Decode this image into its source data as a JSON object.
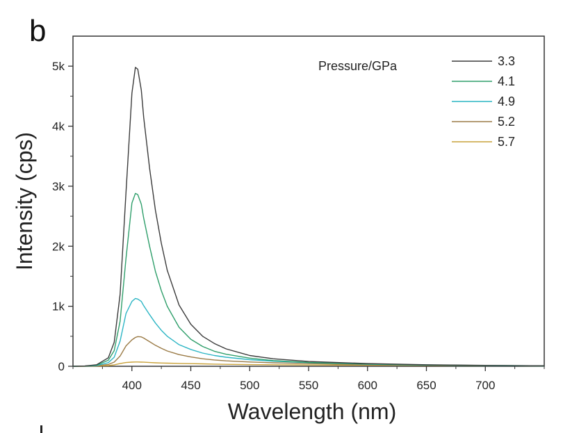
{
  "panel_label": "b",
  "chart_data": {
    "type": "line",
    "title": "",
    "xlabel": "Wavelength (nm)",
    "ylabel": "Intensity (cps)",
    "xlim": [
      350,
      750
    ],
    "ylim": [
      0,
      5500
    ],
    "xticks": [
      400,
      450,
      500,
      550,
      600,
      650,
      700
    ],
    "yticks": [
      0,
      1000,
      2000,
      3000,
      4000,
      5000
    ],
    "ytick_labels": [
      "0",
      "1k",
      "2k",
      "3k",
      "4k",
      "5k"
    ],
    "legend_title": "Pressure/GPa",
    "legend_position": "top-right",
    "grid": false,
    "x": [
      350,
      360,
      370,
      380,
      385,
      390,
      395,
      400,
      403,
      405,
      408,
      410,
      415,
      420,
      425,
      430,
      440,
      450,
      460,
      470,
      480,
      500,
      520,
      550,
      600,
      650,
      700,
      750
    ],
    "series": [
      {
        "name": "3.3",
        "color": "#3a3a3a",
        "values": [
          0,
          5,
          25,
          140,
          400,
          1200,
          2900,
          4550,
          4980,
          4950,
          4600,
          4150,
          3300,
          2600,
          2050,
          1600,
          1020,
          700,
          500,
          380,
          290,
          180,
          125,
          80,
          45,
          25,
          15,
          8
        ]
      },
      {
        "name": "4.1",
        "color": "#2e9e6a",
        "values": [
          0,
          4,
          18,
          100,
          260,
          750,
          1800,
          2720,
          2880,
          2860,
          2700,
          2470,
          2000,
          1580,
          1260,
          1000,
          650,
          450,
          330,
          250,
          200,
          135,
          95,
          65,
          38,
          22,
          14,
          8
        ]
      },
      {
        "name": "4.9",
        "color": "#2bb5c4",
        "values": [
          0,
          3,
          12,
          60,
          150,
          420,
          880,
          1080,
          1130,
          1120,
          1080,
          1010,
          860,
          720,
          600,
          500,
          360,
          280,
          220,
          180,
          150,
          110,
          85,
          60,
          35,
          20,
          12,
          6
        ]
      },
      {
        "name": "5.2",
        "color": "#9a7a45",
        "values": [
          0,
          2,
          8,
          30,
          70,
          170,
          340,
          440,
          480,
          495,
          490,
          470,
          410,
          350,
          300,
          255,
          195,
          155,
          125,
          105,
          90,
          72,
          58,
          45,
          28,
          18,
          12,
          6
        ]
      },
      {
        "name": "5.7",
        "color": "#c9a23a",
        "values": [
          0,
          1,
          4,
          12,
          24,
          45,
          62,
          70,
          72,
          72,
          70,
          68,
          62,
          58,
          55,
          52,
          48,
          44,
          40,
          36,
          32,
          28,
          26,
          22,
          18,
          14,
          10,
          6
        ]
      }
    ]
  }
}
